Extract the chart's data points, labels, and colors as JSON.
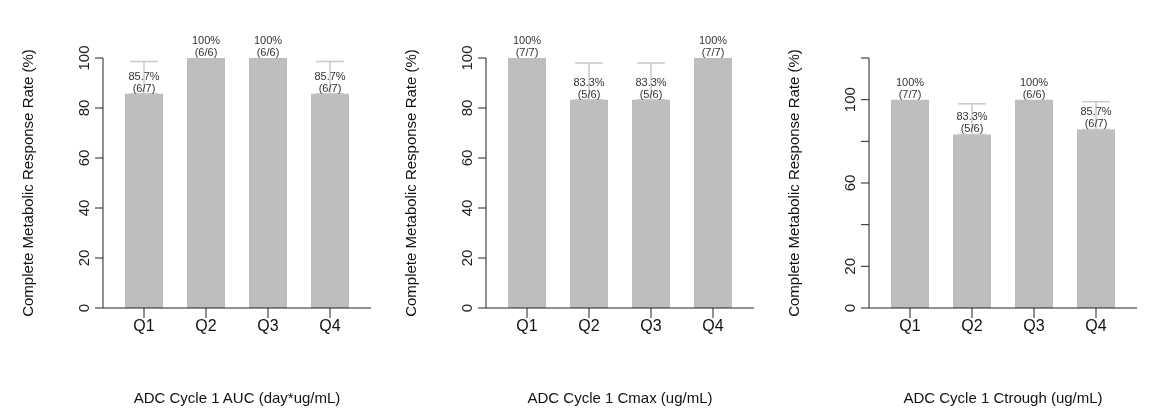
{
  "chart_data": [
    {
      "type": "bar",
      "xlabel": "ADC Cycle 1 AUC (day*ug/mL)",
      "ylabel": "Complete Metabolic Response Rate (%)",
      "categories": [
        "Q1",
        "Q2",
        "Q3",
        "Q4"
      ],
      "values": [
        85.7,
        100,
        100,
        85.7
      ],
      "color": "#bebebe",
      "errors": [
        [
          85.7,
          98.6
        ],
        null,
        null,
        [
          85.7,
          98.6
        ]
      ],
      "value_labels": [
        "85.7%\n(6/7)",
        "100%\n(6/6)",
        "100%\n(6/6)",
        "85.7%\n(6/7)"
      ],
      "ylim": [
        0,
        100
      ],
      "yticks": [
        0,
        20,
        40,
        60,
        80,
        100
      ],
      "grid": false,
      "legend": false
    },
    {
      "type": "bar",
      "xlabel": "ADC Cycle 1 Cmax (ug/mL)",
      "ylabel": "Complete Metabolic Response Rate (%)",
      "categories": [
        "Q1",
        "Q2",
        "Q3",
        "Q4"
      ],
      "values": [
        100,
        83.3,
        83.3,
        100
      ],
      "color": "#bebebe",
      "errors": [
        null,
        [
          83.3,
          98
        ],
        [
          83.3,
          98
        ],
        null
      ],
      "value_labels": [
        "100%\n(7/7)",
        "83.3%\n(5/6)",
        "83.3%\n(5/6)",
        "100%\n(7/7)"
      ],
      "ylim": [
        0,
        100
      ],
      "yticks": [
        0,
        20,
        40,
        60,
        80,
        100
      ],
      "grid": false,
      "legend": false
    },
    {
      "type": "bar",
      "xlabel": "ADC Cycle 1 Ctrough (ug/mL)",
      "ylabel": "Complete Metabolic Response Rate (%)",
      "categories": [
        "Q1",
        "Q2",
        "Q3",
        "Q4"
      ],
      "values": [
        100,
        83.3,
        100,
        85.7
      ],
      "color": "#bebebe",
      "errors": [
        null,
        [
          83.3,
          98
        ],
        null,
        [
          85.7,
          99
        ]
      ],
      "value_labels": [
        "100%\n(7/7)",
        "83.3%\n(5/6)",
        "100%\n(6/6)",
        "85.7%\n(6/7)"
      ],
      "ylim": [
        0,
        120
      ],
      "yticks": [
        0,
        20,
        {
          "value": 40,
          "label": null
        },
        60,
        {
          "value": 80,
          "label": null
        },
        100,
        {
          "value": 120,
          "label": null
        }
      ],
      "grid": false,
      "legend": false
    }
  ]
}
